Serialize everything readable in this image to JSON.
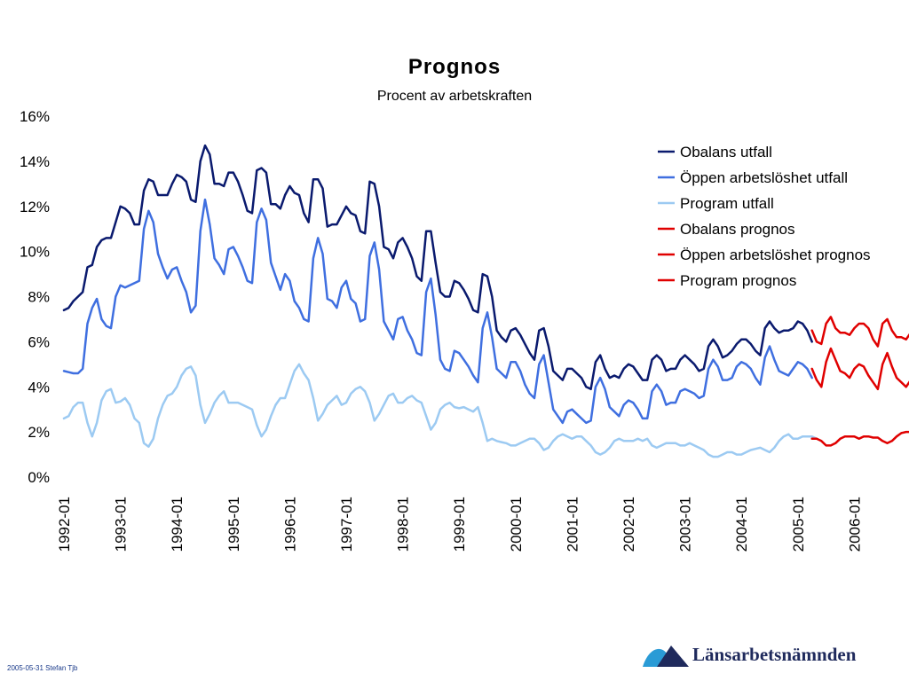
{
  "chart_data": {
    "type": "line",
    "title": "Prognos",
    "subtitle": "Procent av arbetskraften",
    "ylim": [
      0,
      16
    ],
    "yticks": [
      "0%",
      "2%",
      "4%",
      "6%",
      "8%",
      "10%",
      "12%",
      "14%",
      "16%"
    ],
    "xticks": [
      "1992-01",
      "1993-01",
      "1994-01",
      "1995-01",
      "1996-01",
      "1997-01",
      "1998-01",
      "1999-01",
      "2000-01",
      "2001-01",
      "2002-01",
      "2003-01",
      "2004-01",
      "2005-01",
      "2006-01"
    ],
    "x_start": "1992-01",
    "grid": false,
    "legend_position": "top-right",
    "series": [
      {
        "name": "Obalans utfall",
        "color": "#0a1a6e",
        "start": "1992-01",
        "values": [
          7.4,
          7.5,
          7.8,
          8.0,
          8.2,
          9.3,
          9.4,
          10.2,
          10.5,
          10.6,
          10.6,
          11.3,
          12.0,
          11.9,
          11.7,
          11.2,
          11.2,
          12.7,
          13.2,
          13.1,
          12.5,
          12.5,
          12.5,
          13.0,
          13.4,
          13.3,
          13.1,
          12.3,
          12.2,
          14.0,
          14.7,
          14.3,
          13.0,
          13.0,
          12.9,
          13.5,
          13.5,
          13.1,
          12.5,
          11.8,
          11.7,
          13.6,
          13.7,
          13.5,
          12.1,
          12.1,
          11.9,
          12.5,
          12.9,
          12.6,
          12.5,
          11.7,
          11.3,
          13.2,
          13.2,
          12.8,
          11.1,
          11.2,
          11.2,
          11.6,
          12.0,
          11.7,
          11.6,
          10.9,
          10.8,
          13.1,
          13.0,
          12.0,
          10.2,
          10.1,
          9.7,
          10.4,
          10.6,
          10.2,
          9.7,
          8.9,
          8.7,
          10.9,
          10.9,
          9.5,
          8.2,
          8.0,
          8.0,
          8.7,
          8.6,
          8.3,
          7.9,
          7.4,
          7.3,
          9.0,
          8.9,
          8.0,
          6.5,
          6.2,
          6.0,
          6.5,
          6.6,
          6.3,
          5.9,
          5.5,
          5.2,
          6.5,
          6.6,
          5.8,
          4.7,
          4.5,
          4.3,
          4.8,
          4.8,
          4.6,
          4.4,
          4.0,
          3.9,
          5.1,
          5.4,
          4.8,
          4.4,
          4.5,
          4.4,
          4.8,
          5.0,
          4.9,
          4.6,
          4.3,
          4.3,
          5.2,
          5.4,
          5.2,
          4.7,
          4.8,
          4.8,
          5.2,
          5.4,
          5.2,
          5.0,
          4.7,
          4.8,
          5.8,
          6.1,
          5.8,
          5.3,
          5.4,
          5.6,
          5.9,
          6.1,
          6.1,
          5.9,
          5.6,
          5.4,
          6.6,
          6.9,
          6.6,
          6.4,
          6.5,
          6.5,
          6.6,
          6.9,
          6.8,
          6.5,
          6.0
        ]
      },
      {
        "name": "Öppen arbetslöshet utfall",
        "color": "#3f6fe0",
        "start": "1992-01",
        "values": [
          4.7,
          4.65,
          4.6,
          4.6,
          4.8,
          6.8,
          7.5,
          7.9,
          7.0,
          6.7,
          6.6,
          8.0,
          8.5,
          8.4,
          8.5,
          8.6,
          8.7,
          11.0,
          11.8,
          11.3,
          9.9,
          9.3,
          8.8,
          9.2,
          9.3,
          8.7,
          8.2,
          7.3,
          7.6,
          10.9,
          12.3,
          11.2,
          9.7,
          9.4,
          9.0,
          10.1,
          10.2,
          9.8,
          9.3,
          8.7,
          8.6,
          11.3,
          11.9,
          11.4,
          9.5,
          8.9,
          8.3,
          9.0,
          8.7,
          7.8,
          7.5,
          7.0,
          6.9,
          9.7,
          10.6,
          9.9,
          7.9,
          7.8,
          7.5,
          8.4,
          8.7,
          7.9,
          7.7,
          6.9,
          7.0,
          9.8,
          10.4,
          9.2,
          6.9,
          6.5,
          6.1,
          7.0,
          7.1,
          6.5,
          6.1,
          5.5,
          5.4,
          8.2,
          8.8,
          7.2,
          5.2,
          4.8,
          4.7,
          5.6,
          5.5,
          5.2,
          4.9,
          4.5,
          4.2,
          6.6,
          7.3,
          6.2,
          4.8,
          4.6,
          4.4,
          5.1,
          5.1,
          4.7,
          4.1,
          3.7,
          3.5,
          5.0,
          5.4,
          4.2,
          3.0,
          2.7,
          2.4,
          2.9,
          3.0,
          2.8,
          2.6,
          2.4,
          2.5,
          4.0,
          4.4,
          3.9,
          3.1,
          2.9,
          2.7,
          3.2,
          3.4,
          3.3,
          3.0,
          2.6,
          2.6,
          3.8,
          4.1,
          3.8,
          3.2,
          3.3,
          3.3,
          3.8,
          3.9,
          3.8,
          3.7,
          3.5,
          3.6,
          4.8,
          5.2,
          4.9,
          4.3,
          4.3,
          4.4,
          4.9,
          5.1,
          5.0,
          4.8,
          4.4,
          4.1,
          5.3,
          5.8,
          5.2,
          4.7,
          4.6,
          4.5,
          4.8,
          5.1,
          5.0,
          4.8,
          4.4
        ]
      },
      {
        "name": "Program utfall",
        "color": "#9ccaf2",
        "start": "1992-01",
        "values": [
          2.6,
          2.7,
          3.1,
          3.3,
          3.3,
          2.4,
          1.8,
          2.4,
          3.4,
          3.8,
          3.9,
          3.3,
          3.35,
          3.5,
          3.2,
          2.6,
          2.4,
          1.5,
          1.35,
          1.7,
          2.6,
          3.2,
          3.6,
          3.7,
          4.0,
          4.5,
          4.8,
          4.9,
          4.5,
          3.2,
          2.4,
          2.8,
          3.3,
          3.6,
          3.8,
          3.3,
          3.3,
          3.3,
          3.2,
          3.1,
          3.0,
          2.3,
          1.8,
          2.1,
          2.7,
          3.2,
          3.5,
          3.5,
          4.1,
          4.7,
          5.0,
          4.6,
          4.3,
          3.5,
          2.5,
          2.8,
          3.2,
          3.4,
          3.6,
          3.2,
          3.3,
          3.7,
          3.9,
          4.0,
          3.8,
          3.3,
          2.5,
          2.8,
          3.2,
          3.6,
          3.7,
          3.3,
          3.3,
          3.5,
          3.6,
          3.4,
          3.3,
          2.7,
          2.1,
          2.4,
          3.0,
          3.2,
          3.3,
          3.1,
          3.05,
          3.1,
          3.0,
          2.9,
          3.1,
          2.4,
          1.6,
          1.7,
          1.6,
          1.55,
          1.5,
          1.4,
          1.4,
          1.5,
          1.6,
          1.7,
          1.7,
          1.5,
          1.2,
          1.3,
          1.6,
          1.8,
          1.9,
          1.8,
          1.7,
          1.8,
          1.8,
          1.6,
          1.4,
          1.1,
          1.0,
          1.1,
          1.3,
          1.6,
          1.7,
          1.6,
          1.6,
          1.6,
          1.7,
          1.6,
          1.7,
          1.4,
          1.3,
          1.4,
          1.5,
          1.5,
          1.5,
          1.4,
          1.4,
          1.5,
          1.4,
          1.3,
          1.2,
          1.0,
          0.9,
          0.9,
          1.0,
          1.1,
          1.1,
          1.0,
          1.0,
          1.1,
          1.2,
          1.25,
          1.3,
          1.2,
          1.1,
          1.3,
          1.6,
          1.8,
          1.9,
          1.7,
          1.7,
          1.8,
          1.8,
          1.8,
          1.7
        ]
      },
      {
        "name": "Obalans prognos",
        "color": "#e00000",
        "start": "2005-04",
        "values": [
          6.5,
          6.0,
          5.9,
          6.8,
          7.1,
          6.6,
          6.4,
          6.4,
          6.3,
          6.6,
          6.8,
          6.8,
          6.6,
          6.1,
          5.8,
          6.8,
          7.0,
          6.5,
          6.2,
          6.2,
          6.1,
          6.4
        ]
      },
      {
        "name": "Öppen arbetslöshet prognos",
        "color": "#e00000",
        "start": "2005-04",
        "values": [
          4.8,
          4.3,
          4.0,
          5.1,
          5.7,
          5.2,
          4.7,
          4.6,
          4.4,
          4.8,
          5.0,
          4.9,
          4.5,
          4.2,
          3.9,
          5.0,
          5.5,
          4.9,
          4.4,
          4.2,
          4.0,
          4.3
        ]
      },
      {
        "name": "Program prognos",
        "color": "#e00000",
        "start": "2005-04",
        "values": [
          1.7,
          1.7,
          1.6,
          1.4,
          1.4,
          1.5,
          1.7,
          1.8,
          1.8,
          1.8,
          1.7,
          1.8,
          1.8,
          1.75,
          1.75,
          1.6,
          1.5,
          1.6,
          1.8,
          1.95,
          2.0,
          2.0
        ]
      }
    ]
  },
  "footer": {
    "note": "2005-05-31 Stefan Tjb",
    "logo_text": "Länsarbetsnämnden"
  },
  "colors": {
    "logo": "#1f2a5c",
    "logo_accent": "#2a9bd6"
  }
}
